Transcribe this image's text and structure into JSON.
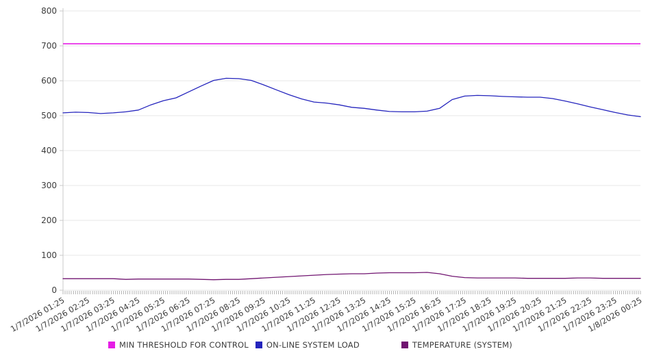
{
  "chart_data": {
    "type": "line",
    "title": "",
    "xlabel": "",
    "ylabel": "",
    "ylim": [
      0,
      800
    ],
    "y_ticks": [
      0,
      100,
      200,
      300,
      400,
      500,
      600,
      700,
      800
    ],
    "grid": "horizontal",
    "legend_position": "bottom",
    "x_labels": [
      "1/7/2026 01:25",
      "1/7/2026 02:25",
      "1/7/2026 03:25",
      "1/7/2026 04:25",
      "1/7/2026 05:25",
      "1/7/2026 06:25",
      "1/7/2026 07:25",
      "1/7/2026 08:25",
      "1/7/2026 09:25",
      "1/7/2026 10:25",
      "1/7/2026 11:25",
      "1/7/2026 12:25",
      "1/7/2026 13:25",
      "1/7/2026 14:25",
      "1/7/2026 15:25",
      "1/7/2026 16:25",
      "1/7/2026 17:25",
      "1/7/2026 18:25",
      "1/7/2026 19:25",
      "1/7/2026 20:25",
      "1/7/2026 21:25",
      "1/7/2026 22:25",
      "1/7/2026 23:25",
      "1/8/2026 00:25"
    ],
    "x_label_rotation_deg": -30,
    "x_sample_minutes": 30,
    "x_minor_tick_minutes": 5,
    "series": [
      {
        "name": "MIN THRESHOLD FOR CONTROL",
        "color": "#e51ee5",
        "constant_value": 706
      },
      {
        "name": "ON-LINE SYSTEM LOAD",
        "color": "#2424bd",
        "values": [
          508,
          510,
          509,
          506,
          508,
          511,
          516,
          531,
          543,
          551,
          568,
          585,
          601,
          607,
          606,
          601,
          588,
          574,
          560,
          548,
          539,
          536,
          531,
          524,
          521,
          516,
          512,
          511,
          511,
          513,
          521,
          546,
          556,
          558,
          557,
          555,
          554,
          553,
          553,
          549,
          542,
          534,
          525,
          517,
          509,
          502,
          497
        ]
      },
      {
        "name": "TEMPERATURE (SYSTEM)",
        "color": "#701470",
        "values": [
          33,
          33,
          33,
          33,
          33,
          31,
          32,
          32,
          32,
          32,
          32,
          31,
          30,
          31,
          31,
          33,
          35,
          37,
          39,
          41,
          43,
          45,
          46,
          47,
          47,
          49,
          50,
          50,
          50,
          51,
          47,
          40,
          36,
          35,
          35,
          35,
          35,
          34,
          34,
          34,
          34,
          35,
          35,
          34,
          34,
          34,
          34
        ]
      }
    ],
    "style": {
      "grid_color": "#e7e7e7",
      "axis_color": "#c8c8c8",
      "minor_tick_color": "#b5b5b5",
      "label_color": "#3c3c3c"
    }
  }
}
